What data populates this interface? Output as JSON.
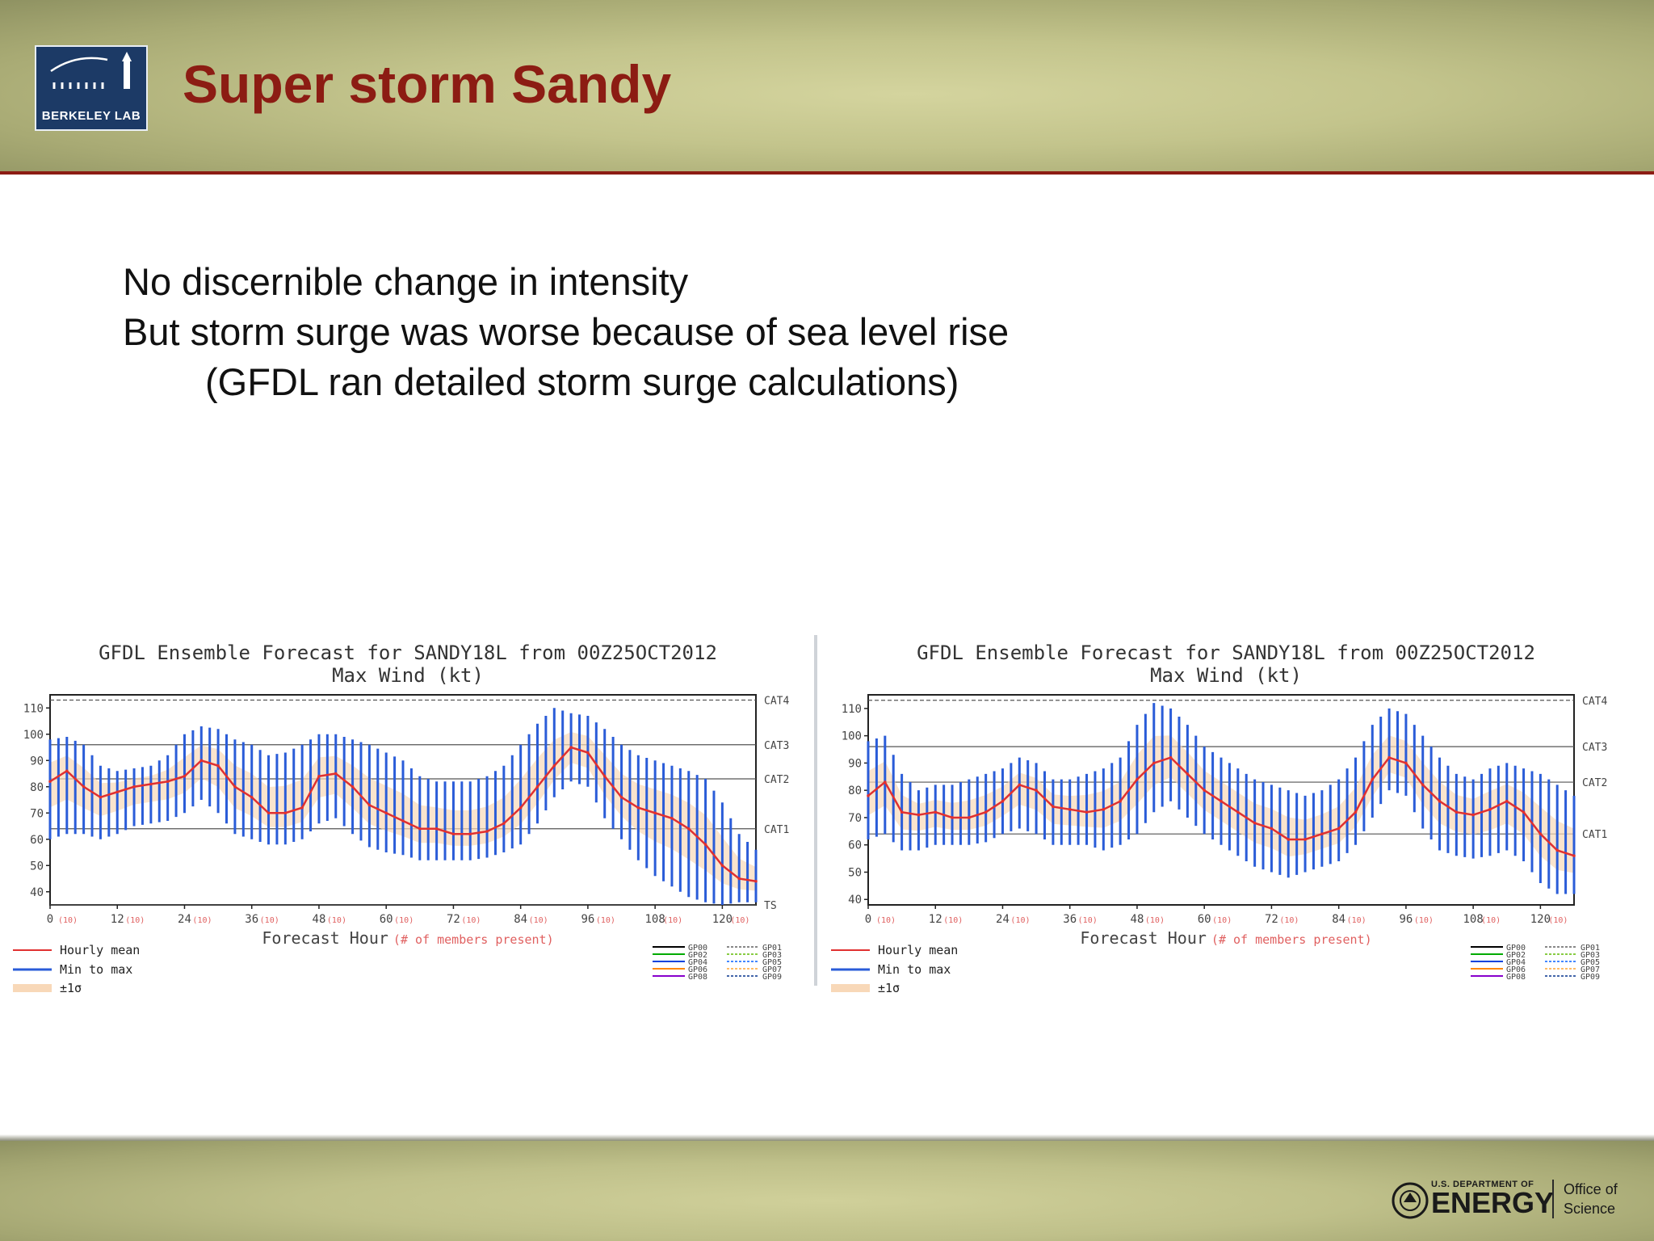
{
  "slide": {
    "title": "Super storm Sandy",
    "logo_text": "BERKELEY LAB",
    "bullets": [
      "No discernible change in intensity",
      "But storm surge was worse because of sea level rise",
      "(GFDL ran detailed storm surge calculations)"
    ],
    "footer": {
      "doe_small": "U.S. DEPARTMENT OF",
      "doe_big": "ENERGY",
      "office_line1": "Office of",
      "office_line2": "Science"
    }
  },
  "chart_data": [
    {
      "type": "line",
      "title": "GFDL Ensemble Forecast for SANDY18L from 00Z25OCT2012",
      "subtitle": "Max Wind (kt)",
      "xlabel": "Forecast Hour",
      "xlabel_note": "(# of members present)",
      "xlim": [
        0,
        126
      ],
      "ylim": [
        35,
        115
      ],
      "x_ticks": [
        {
          "value": 0,
          "label": "0",
          "count": "(10)"
        },
        {
          "value": 12,
          "label": "12",
          "count": "(10)"
        },
        {
          "value": 24,
          "label": "24",
          "count": "(10)"
        },
        {
          "value": 36,
          "label": "36",
          "count": "(10)"
        },
        {
          "value": 48,
          "label": "48",
          "count": "(10)"
        },
        {
          "value": 60,
          "label": "60",
          "count": "(10)"
        },
        {
          "value": 72,
          "label": "72",
          "count": "(10)"
        },
        {
          "value": 84,
          "label": "84",
          "count": "(10)"
        },
        {
          "value": 96,
          "label": "96",
          "count": "(10)"
        },
        {
          "value": 108,
          "label": "108",
          "count": "(10)"
        },
        {
          "value": 120,
          "label": "120",
          "count": "(10)"
        }
      ],
      "y_ticks": [
        40,
        50,
        60,
        70,
        80,
        90,
        100,
        110
      ],
      "categories": [
        {
          "label": "CAT4",
          "value": 113
        },
        {
          "label": "CAT3",
          "value": 96
        },
        {
          "label": "CAT2",
          "value": 83
        },
        {
          "label": "CAT1",
          "value": 64
        },
        {
          "label": "TS",
          "value": 34
        }
      ],
      "legend_items": [
        "Hourly mean",
        "Min to max",
        "±1σ"
      ],
      "member_legend": [
        "GP00",
        "GP01",
        "GP02",
        "GP03",
        "GP04",
        "GP05",
        "GP06",
        "GP07",
        "GP08",
        "GP09"
      ],
      "x": [
        0,
        3,
        6,
        9,
        12,
        15,
        18,
        21,
        24,
        27,
        30,
        33,
        36,
        39,
        42,
        45,
        48,
        51,
        54,
        57,
        60,
        63,
        66,
        69,
        72,
        75,
        78,
        81,
        84,
        87,
        90,
        93,
        96,
        99,
        102,
        105,
        108,
        111,
        114,
        117,
        120,
        123,
        126
      ],
      "series": [
        {
          "name": "Hourly mean",
          "values": [
            82,
            86,
            80,
            76,
            78,
            80,
            81,
            82,
            84,
            90,
            88,
            80,
            76,
            70,
            70,
            72,
            84,
            85,
            80,
            73,
            70,
            67,
            64,
            64,
            62,
            62,
            63,
            66,
            72,
            80,
            88,
            95,
            93,
            84,
            76,
            72,
            70,
            68,
            64,
            58,
            50,
            45,
            44
          ]
        },
        {
          "name": "Min to max",
          "values": [
            [
              60,
              98
            ],
            [
              62,
              99
            ],
            [
              62,
              96
            ],
            [
              60,
              88
            ],
            [
              62,
              86
            ],
            [
              65,
              87
            ],
            [
              66,
              88
            ],
            [
              67,
              92
            ],
            [
              70,
              100
            ],
            [
              75,
              103
            ],
            [
              70,
              102
            ],
            [
              62,
              98
            ],
            [
              60,
              96
            ],
            [
              58,
              92
            ],
            [
              58,
              93
            ],
            [
              60,
              96
            ],
            [
              66,
              100
            ],
            [
              68,
              100
            ],
            [
              62,
              98
            ],
            [
              57,
              96
            ],
            [
              55,
              93
            ],
            [
              54,
              90
            ],
            [
              52,
              84
            ],
            [
              52,
              82
            ],
            [
              52,
              82
            ],
            [
              52,
              82
            ],
            [
              53,
              84
            ],
            [
              55,
              88
            ],
            [
              58,
              96
            ],
            [
              66,
              104
            ],
            [
              76,
              110
            ],
            [
              82,
              108
            ],
            [
              80,
              107
            ],
            [
              68,
              102
            ],
            [
              60,
              96
            ],
            [
              52,
              92
            ],
            [
              46,
              90
            ],
            [
              42,
              88
            ],
            [
              38,
              86
            ],
            [
              36,
              83
            ],
            [
              35,
              74
            ],
            [
              36,
              62
            ],
            [
              36,
              56
            ]
          ]
        }
      ]
    },
    {
      "type": "line",
      "title": "GFDL Ensemble Forecast for SANDY18L from 00Z25OCT2012",
      "subtitle": "Max Wind (kt)",
      "xlabel": "Forecast Hour",
      "xlabel_note": "(# of members present)",
      "xlim": [
        0,
        126
      ],
      "ylim": [
        38,
        115
      ],
      "x_ticks": [
        {
          "value": 0,
          "label": "0",
          "count": "(10)"
        },
        {
          "value": 12,
          "label": "12",
          "count": "(10)"
        },
        {
          "value": 24,
          "label": "24",
          "count": "(10)"
        },
        {
          "value": 36,
          "label": "36",
          "count": "(10)"
        },
        {
          "value": 48,
          "label": "48",
          "count": "(10)"
        },
        {
          "value": 60,
          "label": "60",
          "count": "(10)"
        },
        {
          "value": 72,
          "label": "72",
          "count": "(10)"
        },
        {
          "value": 84,
          "label": "84",
          "count": "(10)"
        },
        {
          "value": 96,
          "label": "96",
          "count": "(10)"
        },
        {
          "value": 108,
          "label": "108",
          "count": "(10)"
        },
        {
          "value": 120,
          "label": "120",
          "count": "(10)"
        }
      ],
      "y_ticks": [
        40,
        50,
        60,
        70,
        80,
        90,
        100,
        110
      ],
      "categories": [
        {
          "label": "CAT4",
          "value": 113
        },
        {
          "label": "CAT3",
          "value": 96
        },
        {
          "label": "CAT2",
          "value": 83
        },
        {
          "label": "CAT1",
          "value": 64
        }
      ],
      "legend_items": [
        "Hourly mean",
        "Min to max",
        "±1σ"
      ],
      "member_legend": [
        "GP00",
        "GP01",
        "GP02",
        "GP03",
        "GP04",
        "GP05",
        "GP06",
        "GP07",
        "GP08",
        "GP09"
      ],
      "x": [
        0,
        3,
        6,
        9,
        12,
        15,
        18,
        21,
        24,
        27,
        30,
        33,
        36,
        39,
        42,
        45,
        48,
        51,
        54,
        57,
        60,
        63,
        66,
        69,
        72,
        75,
        78,
        81,
        84,
        87,
        90,
        93,
        96,
        99,
        102,
        105,
        108,
        111,
        114,
        117,
        120,
        123,
        126
      ],
      "series": [
        {
          "name": "Hourly mean",
          "values": [
            78,
            83,
            72,
            71,
            72,
            70,
            70,
            72,
            76,
            82,
            80,
            74,
            73,
            72,
            73,
            76,
            84,
            90,
            92,
            86,
            80,
            76,
            72,
            68,
            66,
            62,
            62,
            64,
            66,
            72,
            84,
            92,
            90,
            82,
            76,
            72,
            71,
            73,
            76,
            72,
            64,
            58,
            56
          ]
        },
        {
          "name": "Min to max",
          "values": [
            [
              62,
              98
            ],
            [
              64,
              100
            ],
            [
              58,
              86
            ],
            [
              58,
              80
            ],
            [
              60,
              82
            ],
            [
              60,
              82
            ],
            [
              60,
              84
            ],
            [
              61,
              86
            ],
            [
              64,
              88
            ],
            [
              66,
              92
            ],
            [
              64,
              90
            ],
            [
              60,
              84
            ],
            [
              60,
              84
            ],
            [
              60,
              86
            ],
            [
              58,
              88
            ],
            [
              60,
              92
            ],
            [
              64,
              104
            ],
            [
              72,
              112
            ],
            [
              76,
              110
            ],
            [
              70,
              104
            ],
            [
              64,
              96
            ],
            [
              60,
              92
            ],
            [
              56,
              88
            ],
            [
              52,
              84
            ],
            [
              50,
              82
            ],
            [
              48,
              80
            ],
            [
              50,
              78
            ],
            [
              52,
              80
            ],
            [
              54,
              84
            ],
            [
              60,
              92
            ],
            [
              70,
              104
            ],
            [
              80,
              110
            ],
            [
              78,
              108
            ],
            [
              66,
              100
            ],
            [
              58,
              92
            ],
            [
              56,
              86
            ],
            [
              55,
              84
            ],
            [
              56,
              88
            ],
            [
              58,
              90
            ],
            [
              54,
              88
            ],
            [
              46,
              86
            ],
            [
              42,
              82
            ],
            [
              42,
              78
            ]
          ]
        }
      ]
    }
  ]
}
